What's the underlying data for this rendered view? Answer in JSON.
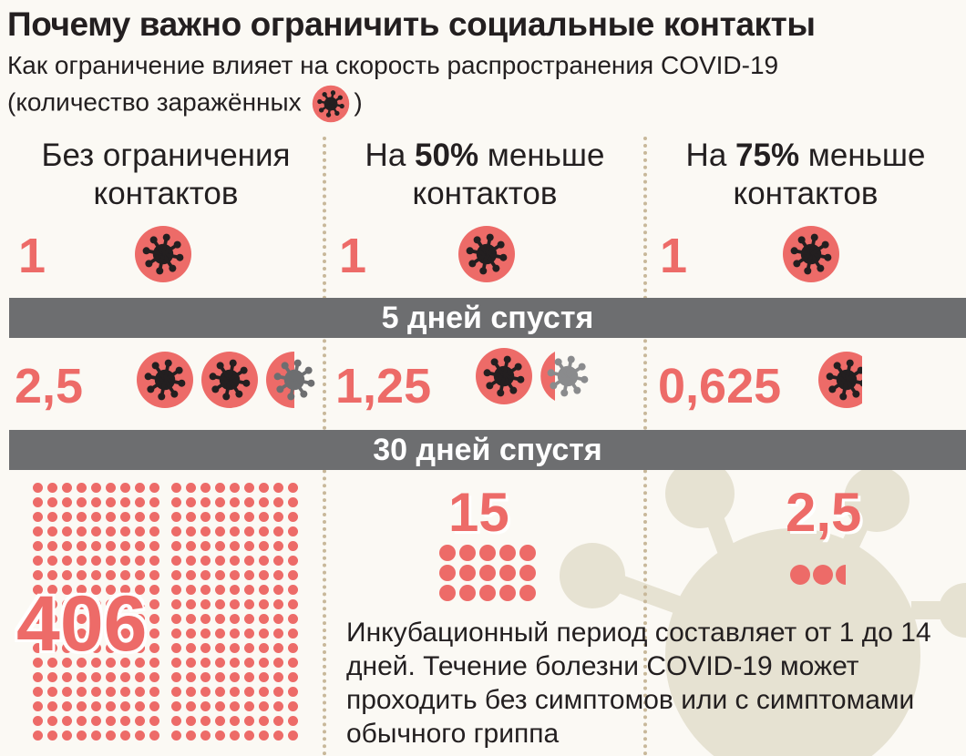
{
  "header": {
    "title": "Почему важно ограничить социальные контакты",
    "subtitle_line1": "Как ограничение влияет на скорость распространения COVID-19",
    "subtitle_line2_before": "(количество заражённых",
    "subtitle_line2_after": ")"
  },
  "columns": [
    {
      "head_line1": "Без ограничения",
      "head_line2": "контактов",
      "initial": "1",
      "after5": "2,5",
      "after30": "406",
      "dot_count": 406
    },
    {
      "head_pre": "На ",
      "head_bold": "50%",
      "head_post": " меньше",
      "head_line2": "контактов",
      "initial": "1",
      "after5": "1,25",
      "after30": "15",
      "dot_count": 15
    },
    {
      "head_pre": "На ",
      "head_bold": "75%",
      "head_post": " меньше",
      "head_line2": "контактов",
      "initial": "1",
      "after5": "0,625",
      "after30": "2,5",
      "dot_count": 2.5
    }
  ],
  "bands": {
    "day5": "5 дней спустя",
    "day30": "30 дней спустя"
  },
  "note": "Инкубационный период составляет от 1 до 14 дней. Течение болезни COVID-19 может проходить без симптомов или с симптомами обычного гриппа",
  "colors": {
    "accent": "#ed6b68",
    "virus": "#231f20",
    "band": "#6d6e70",
    "faded_virus": "#6d6e70",
    "background_virus": "#e6e2d2"
  },
  "icons": {
    "virus": "virus-icon"
  }
}
